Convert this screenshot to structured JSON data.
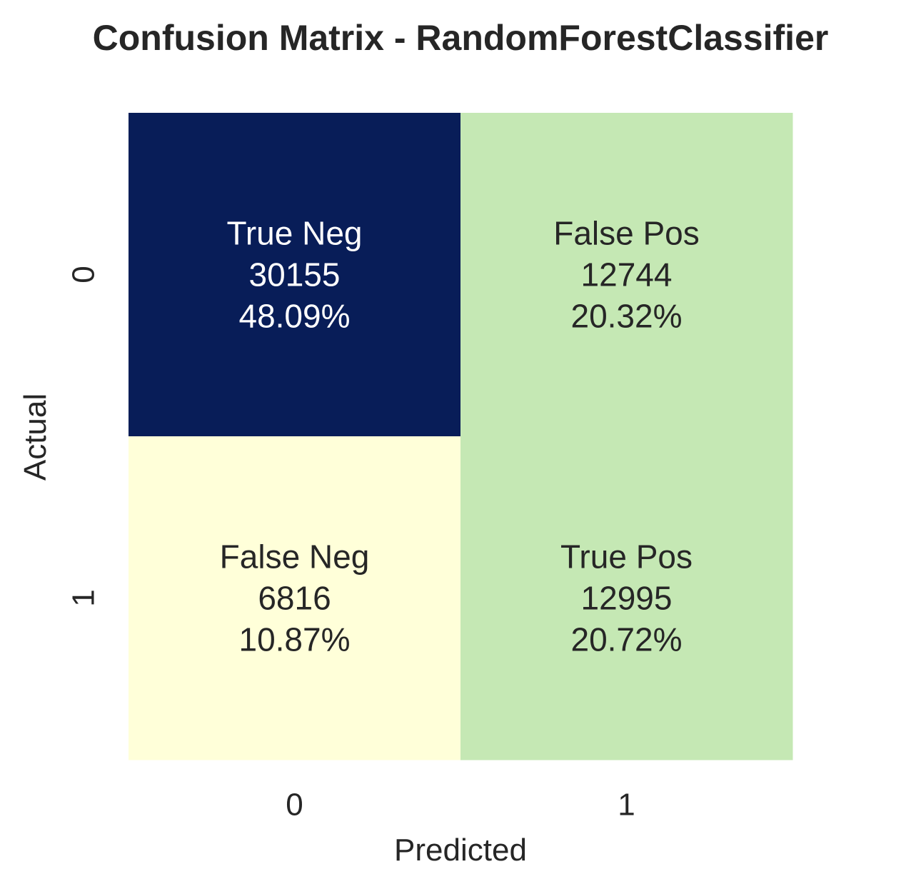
{
  "chart_data": {
    "type": "heatmap",
    "title": "Confusion Matrix - RandomForestClassifier",
    "xlabel": "Predicted",
    "ylabel": "Actual",
    "x_categories": [
      "0",
      "1"
    ],
    "y_categories": [
      "0",
      "1"
    ],
    "cells": [
      {
        "actual": "0",
        "predicted": "0",
        "label": "True Neg",
        "count": 30155,
        "count_text": "30155",
        "percent_text": "48.09%",
        "color": "#081d58",
        "text_color": "#ffffff"
      },
      {
        "actual": "0",
        "predicted": "1",
        "label": "False Pos",
        "count": 12744,
        "count_text": "12744",
        "percent_text": "20.32%",
        "color": "#c5e8b4",
        "text_color": "#262626"
      },
      {
        "actual": "1",
        "predicted": "0",
        "label": "False Neg",
        "count": 6816,
        "count_text": "6816",
        "percent_text": "10.87%",
        "color": "#ffffd9",
        "text_color": "#262626"
      },
      {
        "actual": "1",
        "predicted": "1",
        "label": "True Pos",
        "count": 12995,
        "count_text": "12995",
        "percent_text": "20.72%",
        "color": "#c5e8b4",
        "text_color": "#262626"
      }
    ],
    "colorbar": false,
    "grid": false
  }
}
